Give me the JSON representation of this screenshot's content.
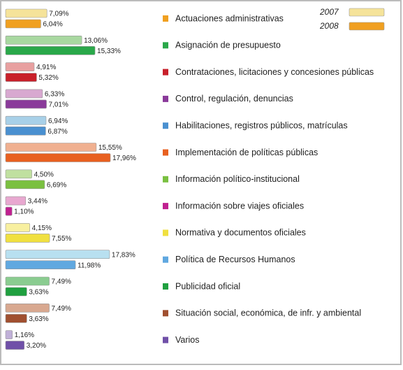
{
  "chart_data": {
    "type": "bar",
    "orientation": "horizontal",
    "categories": [
      "Actuaciones administrativas",
      "Asignación de presupuesto",
      "Contrataciones, licitaciones y concesiones públicas",
      "Control, regulación, denuncias",
      "Habilitaciones, registros públicos, matrículas",
      "Implementación de políticas públicas",
      "Información político-institucional",
      "Información sobre viajes oficiales",
      "Normativa y documentos oficiales",
      "Política de Recursos Humanos",
      "Publicidad oficial",
      "Situación social, económica, de infr. y ambiental",
      "Varios"
    ],
    "series": [
      {
        "name": "2007",
        "color": "#f5e39a",
        "colors": [
          "#f5e39a",
          "#a8d8a0",
          "#e8a0a0",
          "#d8a8d0",
          "#a8d0e8",
          "#f0b090",
          "#c0e0a0",
          "#e8a8d0",
          "#f8f0a0",
          "#b8e0f0",
          "#8acc90",
          "#d8a890",
          "#c0b0d8"
        ],
        "values": [
          7.09,
          13.06,
          4.91,
          6.33,
          6.94,
          15.55,
          4.5,
          3.44,
          4.15,
          17.83,
          7.49,
          7.49,
          1.16
        ],
        "value_labels": [
          "7,09%",
          "13,06%",
          "4,91%",
          "6,33%",
          "6,94%",
          "15,55%",
          "4,50%",
          "3,44%",
          "4,15%",
          "17,83%",
          "7,49%",
          "7,49%",
          "1,16%"
        ]
      },
      {
        "name": "2008",
        "color": "#f0a020",
        "colors": [
          "#f0a020",
          "#2aa84a",
          "#c8202a",
          "#8a3a9a",
          "#4a90d0",
          "#e86020",
          "#7ac040",
          "#c02090",
          "#f0e040",
          "#60a8e0",
          "#20a040",
          "#a05030",
          "#7050a8"
        ],
        "values": [
          6.04,
          15.33,
          5.32,
          7.01,
          6.87,
          17.96,
          6.69,
          1.1,
          7.55,
          11.98,
          3.63,
          3.63,
          3.2
        ],
        "value_labels": [
          "6,04%",
          "15,33%",
          "5,32%",
          "7,01%",
          "6,87%",
          "17,96%",
          "6,69%",
          "1,10%",
          "7,55%",
          "11,98%",
          "3,63%",
          "3,63%",
          "3,20%"
        ]
      }
    ],
    "legend": "top-right"
  }
}
